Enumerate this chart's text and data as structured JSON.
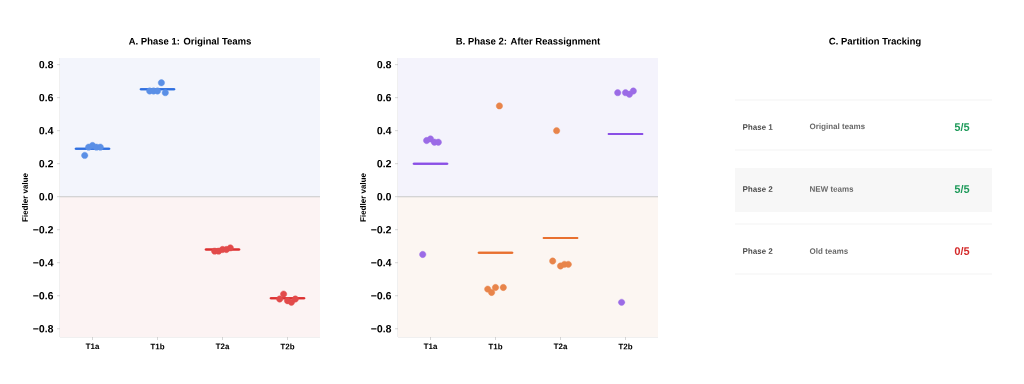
{
  "chart_data": [
    {
      "type": "scatter",
      "title": "A.  Phase 1: Original Teams",
      "ylabel": "Fiedler value",
      "categories": [
        "T1a",
        "T1b",
        "T2a",
        "T2b"
      ],
      "ylim": [
        -0.85,
        0.84
      ],
      "yticks": [
        {
          "value": -0.8,
          "label": "−0.8"
        },
        {
          "value": -0.6,
          "label": "−0.6"
        },
        {
          "value": -0.4,
          "label": "−0.4"
        },
        {
          "value": -0.2,
          "label": "−0.2"
        },
        {
          "value": 0,
          "label": "0.0"
        },
        0.2,
        0.4,
        0.6,
        0.8
      ],
      "ref_lines": [
        {
          "axis": "y",
          "value": 0,
          "color": "#c8c8c8"
        }
      ],
      "bands": [
        {
          "axis": "y",
          "from": 0,
          "to": 0.84,
          "color": "#f3f5fc"
        },
        {
          "axis": "y",
          "from": -0.85,
          "to": 0,
          "color": "#fcf3f3"
        }
      ],
      "series": [
        {
          "type": "box",
          "boxes": [
            {
              "low": 0.29,
              "q1": 0.29,
              "median": 0.29,
              "q3": 0.29,
              "high": 0.29
            },
            {
              "low": 0.65,
              "q1": 0.65,
              "median": 0.65,
              "q3": 0.65,
              "high": 0.65
            },
            {
              "low": -0.32,
              "q1": -0.32,
              "median": -0.32,
              "q3": -0.32,
              "high": -0.32
            },
            {
              "low": -0.615,
              "q1": -0.615,
              "median": -0.615,
              "q3": -0.615,
              "high": -0.615
            }
          ],
          "colors": [
            "#2f6fe0",
            "#2f6fe0",
            "#dc2f2f",
            "#dc2f2f"
          ]
        },
        {
          "type": "scatter",
          "marker": "circle",
          "values": [
            0.25,
            0.64,
            -0.33,
            -0.62
          ],
          "colors": [
            "#5a8fe6",
            "#5a8fe6",
            "#e24a4a",
            "#e24a4a"
          ]
        },
        {
          "type": "scatter",
          "marker": "circle",
          "values": [
            0.3,
            0.64,
            -0.33,
            -0.59
          ],
          "colors": [
            "#5a8fe6",
            "#5a8fe6",
            "#e24a4a",
            "#e24a4a"
          ]
        },
        {
          "type": "scatter",
          "marker": "circle",
          "values": [
            0.31,
            0.64,
            -0.32,
            -0.63
          ],
          "colors": [
            "#5a8fe6",
            "#5a8fe6",
            "#e24a4a",
            "#e24a4a"
          ]
        },
        {
          "type": "scatter",
          "marker": "circle",
          "values": [
            0.3,
            0.69,
            -0.32,
            -0.64
          ],
          "colors": [
            "#5a8fe6",
            "#5a8fe6",
            "#e24a4a",
            "#e24a4a"
          ]
        },
        {
          "type": "scatter",
          "marker": "circle",
          "values": [
            0.3,
            0.63,
            -0.31,
            -0.62
          ],
          "colors": [
            "#5a8fe6",
            "#5a8fe6",
            "#e24a4a",
            "#e24a4a"
          ]
        }
      ]
    },
    {
      "type": "scatter",
      "title": "B.  Phase 2: After Reassignment",
      "ylabel": "Fiedler value",
      "categories": [
        "T1a",
        "T1b",
        "T2a",
        "T2b"
      ],
      "ylim": [
        -0.85,
        0.84
      ],
      "yticks": [
        {
          "value": -0.8,
          "label": "−0.8"
        },
        {
          "value": -0.6,
          "label": "−0.6"
        },
        {
          "value": -0.4,
          "label": "−0.4"
        },
        {
          "value": -0.2,
          "label": "−0.2"
        },
        {
          "value": 0,
          "label": "0.0"
        },
        0.2,
        0.4,
        0.6,
        0.8
      ],
      "ref_lines": [
        {
          "axis": "y",
          "value": 0,
          "color": "#c8c8c8"
        }
      ],
      "bands": [
        {
          "axis": "y",
          "from": 0,
          "to": 0.84,
          "color": "#f4f3fc"
        },
        {
          "axis": "y",
          "from": -0.85,
          "to": 0,
          "color": "#fcf6f2"
        }
      ],
      "series": [
        {
          "type": "box",
          "boxes": [
            {
              "low": 0.2,
              "q1": 0.2,
              "median": 0.2,
              "q3": 0.2,
              "high": 0.2
            },
            {
              "low": -0.34,
              "q1": -0.34,
              "median": -0.34,
              "q3": -0.34,
              "high": -0.34
            },
            {
              "low": -0.25,
              "q1": -0.25,
              "median": -0.25,
              "q3": -0.25,
              "high": -0.25
            },
            {
              "low": 0.38,
              "q1": 0.38,
              "median": 0.38,
              "q3": 0.38,
              "high": 0.38
            }
          ],
          "colors": [
            "#8a4fe6",
            "#e8702f",
            "#e8702f",
            "#8a4fe6"
          ]
        },
        {
          "type": "scatter",
          "marker": "circle",
          "values": [
            -0.35,
            -0.56,
            -0.39,
            0.63
          ],
          "colors": [
            "#9b6be6",
            "#e8844a",
            "#e8844a",
            "#9b6be6"
          ]
        },
        {
          "type": "scatter",
          "marker": "circle",
          "values": [
            0.34,
            -0.58,
            0.4,
            -0.64
          ],
          "colors": [
            "#9b6be6",
            "#e8844a",
            "#e8844a",
            "#9b6be6"
          ]
        },
        {
          "type": "scatter",
          "marker": "circle",
          "values": [
            0.35,
            -0.55,
            -0.42,
            0.63
          ],
          "colors": [
            "#9b6be6",
            "#e8844a",
            "#e8844a",
            "#9b6be6"
          ]
        },
        {
          "type": "scatter",
          "marker": "circle",
          "values": [
            0.33,
            0.55,
            -0.41,
            0.62
          ],
          "colors": [
            "#9b6be6",
            "#e8844a",
            "#e8844a",
            "#9b6be6"
          ]
        },
        {
          "type": "scatter",
          "marker": "circle",
          "values": [
            0.33,
            -0.55,
            -0.41,
            0.64
          ],
          "colors": [
            "#9b6be6",
            "#e8844a",
            "#e8844a",
            "#9b6be6"
          ]
        }
      ]
    },
    {
      "type": "other",
      "title": "C.  Partition Tracking",
      "annotations": [
        "Phase 1",
        "Original teams",
        "5/5",
        "Phase 2",
        "NEW teams",
        "5/5",
        "Phase 2",
        "Old teams",
        "0/5"
      ],
      "colors": [
        "#1e9a5a",
        "#1e9a5a",
        "#d42a2a"
      ]
    }
  ]
}
